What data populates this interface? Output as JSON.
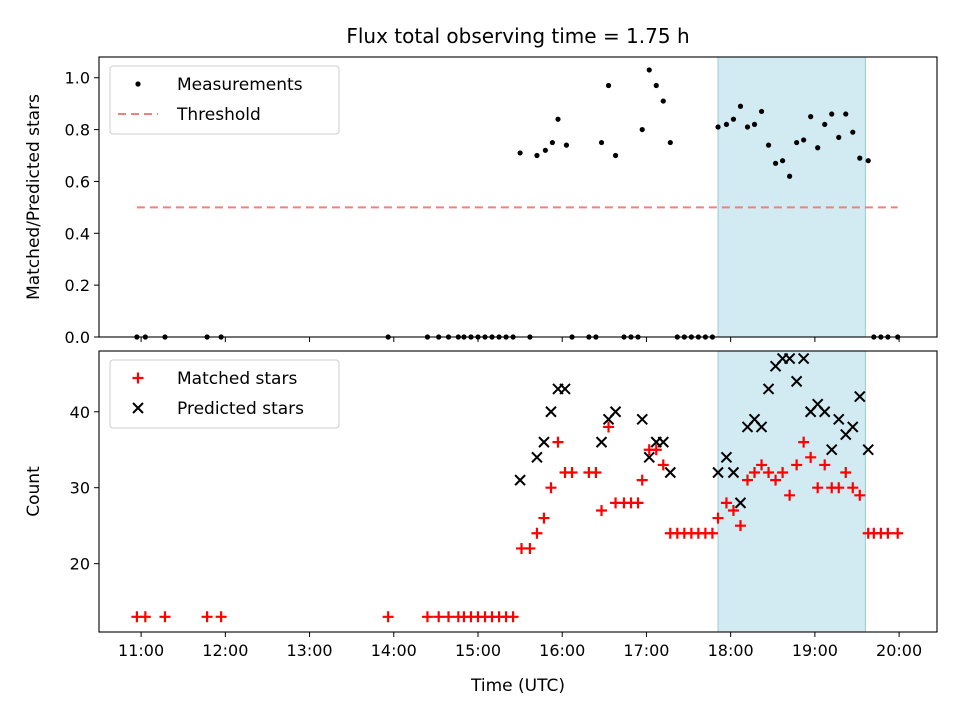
{
  "chart_data": [
    {
      "type": "scatter",
      "title": "Flux total observing time = 1.75 h",
      "xlabel": "",
      "ylabel": "Matched/Predicted stars",
      "xlim": [
        "10:30",
        "20:27"
      ],
      "ylim": [
        0,
        1.08
      ],
      "yticks": [
        0.0,
        0.2,
        0.4,
        0.6,
        0.8,
        1.0
      ],
      "ytick_labels": [
        "0.0",
        "0.2",
        "0.4",
        "0.6",
        "0.8",
        "1.0"
      ],
      "shaded_region": {
        "x": [
          "17:51",
          "19:36"
        ],
        "color": "#add8e6"
      },
      "legend": {
        "location": "upper-left",
        "entries": [
          "Measurements",
          "Threshold"
        ]
      },
      "series": [
        {
          "name": "Measurements",
          "marker": "dot",
          "color": "#000000",
          "points": [
            [
              "10:57",
              0
            ],
            [
              "11:03",
              0
            ],
            [
              "11:17",
              0
            ],
            [
              "11:47",
              0
            ],
            [
              "11:57",
              0
            ],
            [
              "13:56",
              0
            ],
            [
              "14:24",
              0
            ],
            [
              "14:32",
              0
            ],
            [
              "14:39",
              0
            ],
            [
              "14:46",
              0
            ],
            [
              "14:50",
              0
            ],
            [
              "14:55",
              0
            ],
            [
              "15:00",
              0
            ],
            [
              "15:05",
              0
            ],
            [
              "15:10",
              0
            ],
            [
              "15:15",
              0
            ],
            [
              "15:20",
              0
            ],
            [
              "15:25",
              0
            ],
            [
              "15:30",
              0.71
            ],
            [
              "15:37",
              0
            ],
            [
              "15:42",
              0.7
            ],
            [
              "15:48",
              0.72
            ],
            [
              "15:53",
              0.75
            ],
            [
              "15:57",
              0.84
            ],
            [
              "16:03",
              0.74
            ],
            [
              "16:07",
              0
            ],
            [
              "16:19",
              0
            ],
            [
              "16:24",
              0
            ],
            [
              "16:28",
              0.75
            ],
            [
              "16:33",
              0.97
            ],
            [
              "16:38",
              0.7
            ],
            [
              "16:44",
              0
            ],
            [
              "16:49",
              0
            ],
            [
              "16:54",
              0
            ],
            [
              "16:57",
              0.8
            ],
            [
              "17:02",
              1.03
            ],
            [
              "17:07",
              0.97
            ],
            [
              "17:12",
              0.91
            ],
            [
              "17:17",
              0.75
            ],
            [
              "17:22",
              0
            ],
            [
              "17:27",
              0
            ],
            [
              "17:32",
              0
            ],
            [
              "17:37",
              0
            ],
            [
              "17:42",
              0
            ],
            [
              "17:47",
              0
            ],
            [
              "17:51",
              0.81
            ],
            [
              "17:57",
              0.82
            ],
            [
              "18:02",
              0.84
            ],
            [
              "18:07",
              0.89
            ],
            [
              "18:12",
              0.81
            ],
            [
              "18:17",
              0.82
            ],
            [
              "18:22",
              0.87
            ],
            [
              "18:27",
              0.74
            ],
            [
              "18:32",
              0.67
            ],
            [
              "18:37",
              0.68
            ],
            [
              "18:42",
              0.62
            ],
            [
              "18:47",
              0.75
            ],
            [
              "18:52",
              0.76
            ],
            [
              "18:57",
              0.85
            ],
            [
              "19:02",
              0.73
            ],
            [
              "19:07",
              0.82
            ],
            [
              "19:12",
              0.86
            ],
            [
              "19:17",
              0.77
            ],
            [
              "19:22",
              0.86
            ],
            [
              "19:27",
              0.79
            ],
            [
              "19:32",
              0.69
            ],
            [
              "19:38",
              0.68
            ],
            [
              "19:42",
              0
            ],
            [
              "19:47",
              0
            ],
            [
              "19:52",
              0
            ],
            [
              "19:59",
              0
            ]
          ]
        },
        {
          "name": "Threshold",
          "type": "line",
          "style": "dashed",
          "color": "#f08080",
          "points": [
            [
              "10:57",
              0.5
            ],
            [
              "19:59",
              0.5
            ]
          ]
        }
      ]
    },
    {
      "type": "scatter",
      "title": "",
      "xlabel": "Time (UTC)",
      "ylabel": "Count",
      "xlim": [
        "10:30",
        "20:27"
      ],
      "ylim": [
        11,
        48
      ],
      "yticks": [
        20,
        30,
        40
      ],
      "ytick_labels": [
        "20",
        "30",
        "40"
      ],
      "xticks": [
        "11:00",
        "12:00",
        "13:00",
        "14:00",
        "15:00",
        "16:00",
        "17:00",
        "18:00",
        "19:00",
        "20:00"
      ],
      "shaded_region": {
        "x": [
          "17:51",
          "19:36"
        ],
        "color": "#add8e6"
      },
      "legend": {
        "location": "upper-left",
        "entries": [
          "Matched stars",
          "Predicted stars"
        ]
      },
      "series": [
        {
          "name": "Matched stars",
          "marker": "plus",
          "color": "#ff0000",
          "points": [
            [
              "10:57",
              13
            ],
            [
              "11:03",
              13
            ],
            [
              "11:17",
              13
            ],
            [
              "11:47",
              13
            ],
            [
              "11:57",
              13
            ],
            [
              "13:56",
              13
            ],
            [
              "14:24",
              13
            ],
            [
              "14:32",
              13
            ],
            [
              "14:39",
              13
            ],
            [
              "14:46",
              13
            ],
            [
              "14:50",
              13
            ],
            [
              "14:55",
              13
            ],
            [
              "15:00",
              13
            ],
            [
              "15:05",
              13
            ],
            [
              "15:10",
              13
            ],
            [
              "15:15",
              13
            ],
            [
              "15:20",
              13
            ],
            [
              "15:25",
              13
            ],
            [
              "15:31",
              22
            ],
            [
              "15:37",
              22
            ],
            [
              "15:42",
              24
            ],
            [
              "15:47",
              26
            ],
            [
              "15:52",
              30
            ],
            [
              "15:57",
              36
            ],
            [
              "16:02",
              32
            ],
            [
              "16:07",
              32
            ],
            [
              "16:19",
              32
            ],
            [
              "16:24",
              32
            ],
            [
              "16:28",
              27
            ],
            [
              "16:33",
              38
            ],
            [
              "16:38",
              28
            ],
            [
              "16:44",
              28
            ],
            [
              "16:49",
              28
            ],
            [
              "16:54",
              28
            ],
            [
              "16:57",
              31
            ],
            [
              "17:02",
              35
            ],
            [
              "17:07",
              35
            ],
            [
              "17:12",
              33
            ],
            [
              "17:17",
              24
            ],
            [
              "17:22",
              24
            ],
            [
              "17:27",
              24
            ],
            [
              "17:32",
              24
            ],
            [
              "17:37",
              24
            ],
            [
              "17:42",
              24
            ],
            [
              "17:47",
              24
            ],
            [
              "17:51",
              26
            ],
            [
              "17:57",
              28
            ],
            [
              "18:02",
              27
            ],
            [
              "18:07",
              25
            ],
            [
              "18:12",
              31
            ],
            [
              "18:17",
              32
            ],
            [
              "18:22",
              33
            ],
            [
              "18:27",
              32
            ],
            [
              "18:32",
              31
            ],
            [
              "18:37",
              32
            ],
            [
              "18:42",
              29
            ],
            [
              "18:47",
              33
            ],
            [
              "18:52",
              36
            ],
            [
              "18:57",
              34
            ],
            [
              "19:02",
              30
            ],
            [
              "19:07",
              33
            ],
            [
              "19:12",
              30
            ],
            [
              "19:17",
              30
            ],
            [
              "19:22",
              32
            ],
            [
              "19:27",
              30
            ],
            [
              "19:32",
              29
            ],
            [
              "19:38",
              24
            ],
            [
              "19:42",
              24
            ],
            [
              "19:47",
              24
            ],
            [
              "19:52",
              24
            ],
            [
              "19:59",
              24
            ]
          ]
        },
        {
          "name": "Predicted stars",
          "marker": "x",
          "color": "#000000",
          "points": [
            [
              "15:30",
              31
            ],
            [
              "15:42",
              34
            ],
            [
              "15:47",
              36
            ],
            [
              "15:52",
              40
            ],
            [
              "15:57",
              43
            ],
            [
              "16:02",
              43
            ],
            [
              "16:28",
              36
            ],
            [
              "16:33",
              39
            ],
            [
              "16:38",
              40
            ],
            [
              "16:57",
              39
            ],
            [
              "17:02",
              34
            ],
            [
              "17:07",
              36
            ],
            [
              "17:12",
              36
            ],
            [
              "17:17",
              32
            ],
            [
              "17:51",
              32
            ],
            [
              "17:57",
              34
            ],
            [
              "18:02",
              32
            ],
            [
              "18:07",
              28
            ],
            [
              "18:12",
              38
            ],
            [
              "18:17",
              39
            ],
            [
              "18:22",
              38
            ],
            [
              "18:27",
              43
            ],
            [
              "18:32",
              46
            ],
            [
              "18:37",
              47
            ],
            [
              "18:42",
              47
            ],
            [
              "18:47",
              44
            ],
            [
              "18:52",
              47
            ],
            [
              "18:57",
              40
            ],
            [
              "19:02",
              41
            ],
            [
              "19:07",
              40
            ],
            [
              "19:12",
              35
            ],
            [
              "19:17",
              39
            ],
            [
              "19:22",
              37
            ],
            [
              "19:27",
              38
            ],
            [
              "19:32",
              42
            ],
            [
              "19:38",
              35
            ]
          ]
        }
      ]
    }
  ]
}
